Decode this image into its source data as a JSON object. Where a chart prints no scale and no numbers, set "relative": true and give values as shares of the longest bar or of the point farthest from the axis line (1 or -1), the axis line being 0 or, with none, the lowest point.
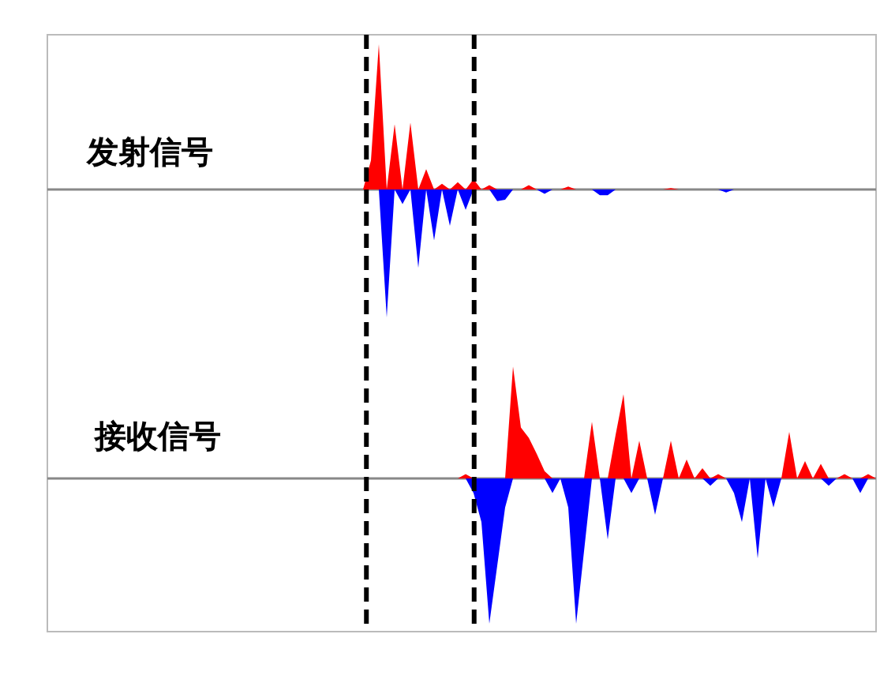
{
  "chart_data": [
    {
      "type": "area",
      "title": "发射信号",
      "relative": true,
      "categories": [
        null,
        null,
        null,
        null,
        null,
        null,
        null,
        null,
        null,
        null,
        null,
        null,
        null,
        null,
        null,
        null,
        null,
        null,
        null,
        null,
        null,
        null,
        null,
        null,
        null,
        null,
        null,
        null,
        null,
        null,
        null,
        null,
        null,
        null,
        null,
        null,
        null,
        null,
        null,
        null,
        null,
        null,
        null,
        null,
        null,
        null,
        null,
        null,
        null,
        null,
        null,
        null,
        null,
        null,
        null,
        null,
        null,
        null,
        null,
        null,
        null,
        null,
        null,
        null,
        null,
        null,
        null,
        null,
        null,
        null,
        null,
        null,
        null,
        null,
        null,
        null,
        null,
        null,
        null,
        null,
        null,
        null,
        null,
        null,
        null,
        null,
        null,
        null,
        null,
        null,
        null,
        null,
        null,
        null,
        null,
        null,
        null,
        null,
        null,
        null,
        null,
        null,
        null,
        null,
        null,
        null
      ],
      "series": [
        {
          "color": "#ff0000",
          "values": [
            0,
            0,
            0,
            0,
            0,
            0,
            0,
            0,
            0,
            0,
            0,
            0,
            0,
            0,
            0,
            0,
            0,
            0,
            0,
            0,
            0,
            0,
            0,
            0,
            0,
            0,
            0,
            0,
            0,
            0,
            0,
            0,
            0,
            0,
            0,
            0,
            0,
            0,
            0,
            0,
            0,
            0.2,
            1,
            0,
            0.45,
            0,
            0.46,
            0,
            0.14,
            0,
            0.04,
            0,
            0.05,
            0,
            0.07,
            0,
            0.03,
            0,
            0,
            0,
            0,
            0.03,
            0,
            0,
            0,
            0,
            0.02,
            0,
            0,
            0,
            0,
            0,
            0,
            0,
            0,
            0,
            0,
            0,
            0,
            0.01,
            0,
            0,
            0,
            0,
            0,
            0,
            0,
            0,
            0,
            0,
            0,
            0,
            0,
            0,
            0,
            0,
            0,
            0,
            0,
            0,
            0,
            0,
            0,
            0,
            0,
            0
          ]
        },
        {
          "color": "#0000ff",
          "values": [
            0,
            0,
            0,
            0,
            0,
            0,
            0,
            0,
            0,
            0,
            0,
            0,
            0,
            0,
            0,
            0,
            0,
            0,
            0,
            0,
            0,
            0,
            0,
            0,
            0,
            0,
            0,
            0,
            0,
            0,
            0,
            0,
            0,
            0,
            0,
            0,
            0,
            0,
            0,
            0,
            0,
            0,
            0,
            -0.88,
            0,
            -0.1,
            0,
            -0.54,
            0,
            -0.35,
            0,
            -0.25,
            0,
            -0.14,
            0,
            0,
            0,
            -0.08,
            -0.07,
            0,
            0,
            0,
            0,
            -0.03,
            0,
            0,
            0,
            0,
            0,
            0,
            -0.04,
            -0.04,
            0,
            0,
            0,
            0,
            0,
            0,
            0,
            0,
            0,
            0,
            0,
            0,
            0,
            0,
            -0.02,
            0,
            0,
            0,
            0,
            0,
            0,
            0,
            0,
            0,
            0,
            0,
            0,
            0,
            0,
            0,
            0,
            0,
            0,
            0
          ]
        }
      ]
    },
    {
      "type": "area",
      "title": "接收信号",
      "relative": true,
      "categories": [
        null,
        null,
        null,
        null,
        null,
        null,
        null,
        null,
        null,
        null,
        null,
        null,
        null,
        null,
        null,
        null,
        null,
        null,
        null,
        null,
        null,
        null,
        null,
        null,
        null,
        null,
        null,
        null,
        null,
        null,
        null,
        null,
        null,
        null,
        null,
        null,
        null,
        null,
        null,
        null,
        null,
        null,
        null,
        null,
        null,
        null,
        null,
        null,
        null,
        null,
        null,
        null,
        null,
        null,
        null,
        null,
        null,
        null,
        null,
        null,
        null,
        null,
        null,
        null,
        null,
        null,
        null,
        null,
        null,
        null,
        null,
        null,
        null,
        null,
        null,
        null,
        null,
        null,
        null,
        null,
        null,
        null,
        null,
        null,
        null,
        null,
        null,
        null,
        null,
        null,
        null,
        null,
        null,
        null,
        null,
        null,
        null,
        null,
        null,
        null,
        null,
        null,
        null,
        null,
        null,
        null
      ],
      "series": [
        {
          "color": "#ff0000",
          "values": [
            0,
            0,
            0,
            0,
            0,
            0,
            0,
            0,
            0,
            0,
            0,
            0,
            0,
            0,
            0,
            0,
            0,
            0,
            0,
            0,
            0,
            0,
            0,
            0,
            0,
            0,
            0,
            0,
            0,
            0,
            0,
            0,
            0,
            0,
            0,
            0,
            0,
            0,
            0,
            0,
            0,
            0,
            0,
            0,
            0,
            0,
            0,
            0,
            0,
            0,
            0,
            0,
            0,
            0.03,
            0,
            0,
            0,
            0,
            0,
            0.77,
            0.35,
            0.28,
            0.17,
            0.05,
            0,
            0,
            0,
            0,
            0,
            0.39,
            0,
            0,
            0.3,
            0.58,
            0,
            0.26,
            0,
            0,
            0,
            0.26,
            0,
            0.13,
            0,
            0.07,
            0,
            0.03,
            0,
            0,
            0,
            0,
            0,
            0,
            0,
            0,
            0.32,
            0,
            0.12,
            0,
            0.1,
            0,
            0,
            0.03,
            0,
            0,
            0.03,
            0
          ]
        },
        {
          "color": "#0000ff",
          "values": [
            0,
            0,
            0,
            0,
            0,
            0,
            0,
            0,
            0,
            0,
            0,
            0,
            0,
            0,
            0,
            0,
            0,
            0,
            0,
            0,
            0,
            0,
            0,
            0,
            0,
            0,
            0,
            0,
            0,
            0,
            0,
            0,
            0,
            0,
            0,
            0,
            0,
            0,
            0,
            0,
            0,
            0,
            0,
            0,
            0,
            0,
            0,
            0,
            0,
            0,
            0,
            0,
            0,
            0,
            -0.1,
            -0.3,
            -1,
            -0.6,
            -0.2,
            0,
            0,
            0,
            0,
            0,
            -0.1,
            0,
            -0.2,
            -1,
            -0.5,
            0,
            0,
            -0.42,
            0,
            0,
            -0.1,
            0,
            0,
            -0.25,
            0,
            0,
            0,
            0,
            0,
            0,
            -0.05,
            0,
            0,
            -0.1,
            -0.3,
            0,
            -0.55,
            0,
            -0.2,
            0,
            0,
            0,
            0,
            0,
            0,
            -0.05,
            0,
            0,
            0,
            -0.1,
            0,
            0
          ]
        }
      ]
    }
  ]
}
